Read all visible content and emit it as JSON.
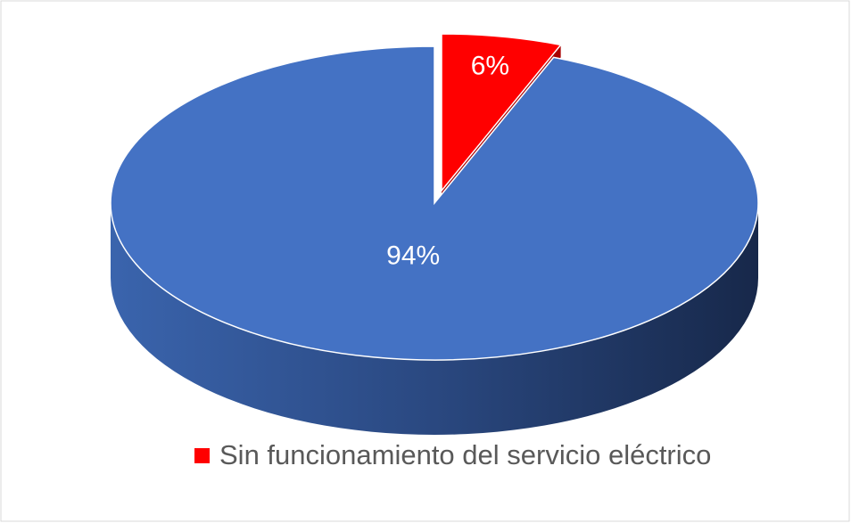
{
  "chart_data": {
    "type": "pie3d",
    "categories": [
      "Sin funcionamiento del servicio eléctrico",
      null
    ],
    "values": [
      6,
      94
    ],
    "value_labels": [
      "6%",
      "94%"
    ],
    "colors": [
      "#ff0000",
      "#4472c4"
    ],
    "legend": "bottom"
  }
}
